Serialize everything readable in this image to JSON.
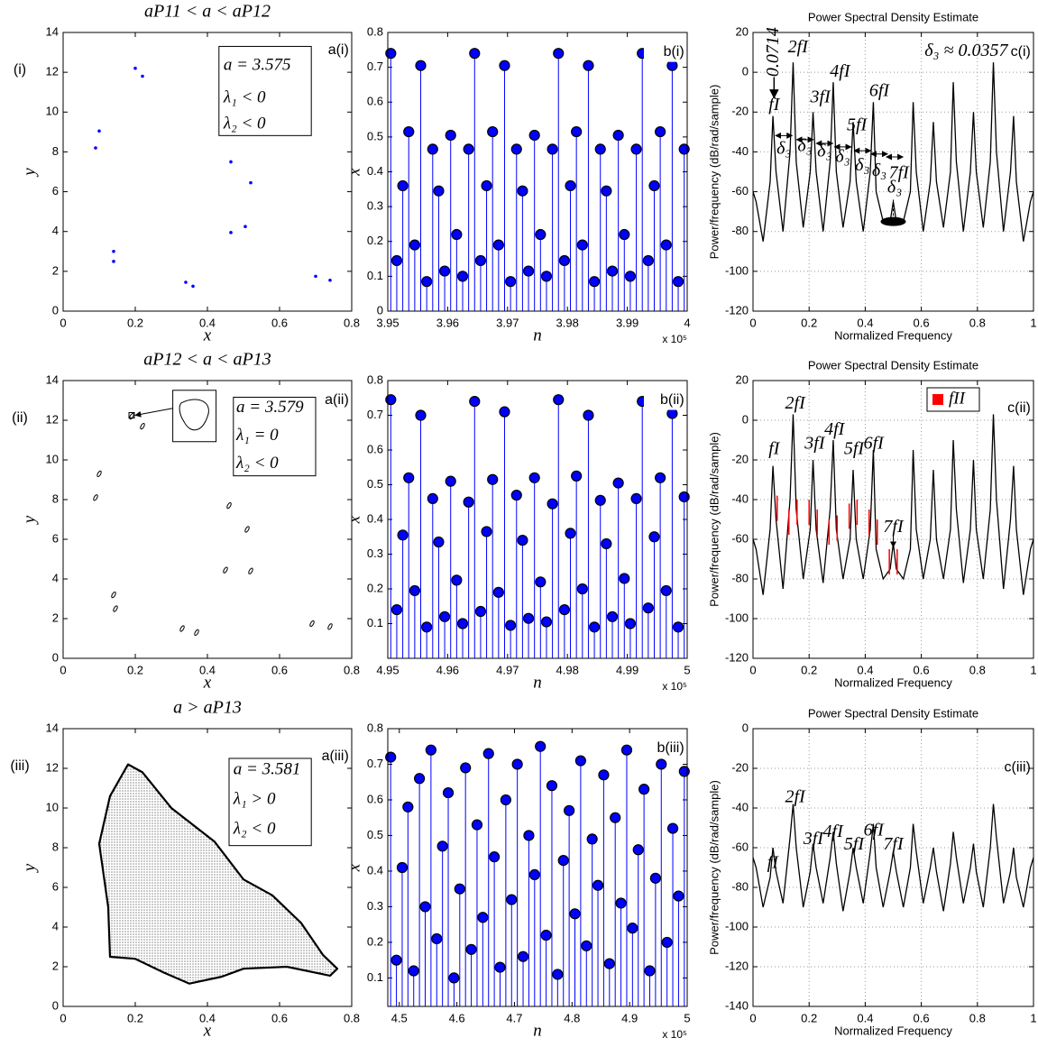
{
  "chart_data": [
    {
      "type": "scatter",
      "title": "aP11 < a < aP12",
      "row_label": "(i)",
      "xlabel": "x",
      "ylabel": "y",
      "marker": "dot",
      "color": "#0000ff",
      "x": [
        0.2,
        0.22,
        0.1,
        0.09,
        0.465,
        0.52,
        0.465,
        0.505,
        0.14,
        0.14,
        0.34,
        0.36,
        0.7,
        0.74
      ],
      "y": [
        12.2,
        11.8,
        9.05,
        8.2,
        7.5,
        6.45,
        3.95,
        4.25,
        3.0,
        2.5,
        1.45,
        1.25,
        1.75,
        1.55
      ],
      "xlim": [
        0,
        0.8
      ],
      "ylim": [
        0,
        14
      ],
      "xticks": [
        0,
        0.2,
        0.4,
        0.6,
        0.8
      ],
      "yticks": [
        0,
        2,
        4,
        6,
        8,
        10,
        12,
        14
      ],
      "annotations": [
        "a(i)",
        "a = 3.575",
        "λ₁ < 0",
        "λ₂ < 0"
      ]
    },
    {
      "type": "stem",
      "xlabel": "n",
      "ylabel": "x",
      "x_multiplier": "x 10⁵",
      "color": "#0000ff",
      "x": [
        3.9505,
        3.9515,
        3.9525,
        3.9535,
        3.9545,
        3.9555,
        3.9565,
        3.9575,
        3.9585,
        3.9595,
        3.9605,
        3.9615,
        3.9625,
        3.9635,
        3.9645,
        3.9655,
        3.9665,
        3.9675,
        3.9685,
        3.9695,
        3.9705,
        3.9715,
        3.9725,
        3.9735,
        3.9745,
        3.9755,
        3.9765,
        3.9775,
        3.9785,
        3.9795,
        3.9805,
        3.9815,
        3.9825,
        3.9835,
        3.9845,
        3.9855,
        3.9865,
        3.9875,
        3.9885,
        3.9895,
        3.9905,
        3.9915,
        3.9925,
        3.9935,
        3.9945,
        3.9955,
        3.9965,
        3.9975,
        3.9985,
        3.9995
      ],
      "values": [
        0.74,
        0.145,
        0.36,
        0.515,
        0.19,
        0.705,
        0.085,
        0.465,
        0.345,
        0.115,
        0.505,
        0.22,
        0.1,
        0.465,
        0.74,
        0.145,
        0.36,
        0.515,
        0.19,
        0.705,
        0.085,
        0.465,
        0.345,
        0.115,
        0.505,
        0.22,
        0.1,
        0.465,
        0.74,
        0.145,
        0.36,
        0.515,
        0.19,
        0.705,
        0.085,
        0.465,
        0.345,
        0.115,
        0.505,
        0.22,
        0.1,
        0.465,
        0.74,
        0.145,
        0.36,
        0.515,
        0.19,
        0.705,
        0.085,
        0.465
      ],
      "xlim": [
        3.95,
        4
      ],
      "ylim": [
        0,
        0.8
      ],
      "xticks": [
        3.95,
        3.96,
        3.97,
        3.98,
        3.99,
        4
      ],
      "yticks": [
        0,
        0.1,
        0.2,
        0.3,
        0.4,
        0.5,
        0.6,
        0.7,
        0.8
      ],
      "annotations": [
        "b(i)"
      ]
    },
    {
      "type": "line",
      "title": "Power Spectral Density Estimate",
      "xlabel": "Normalized Frequency",
      "ylabel": "Power/frequency (dB/rad/sample)",
      "grid": true,
      "x": [
        0,
        0.011,
        0.036,
        0.061,
        0.071,
        0.082,
        0.107,
        0.132,
        0.143,
        0.154,
        0.179,
        0.204,
        0.214,
        0.225,
        0.25,
        0.275,
        0.286,
        0.297,
        0.321,
        0.346,
        0.357,
        0.368,
        0.393,
        0.418,
        0.429,
        0.439,
        0.464,
        0.489,
        0.5,
        0.511,
        0.536,
        0.561,
        0.571,
        0.582,
        0.607,
        0.632,
        0.643,
        0.654,
        0.679,
        0.704,
        0.714,
        0.725,
        0.75,
        0.775,
        0.786,
        0.796,
        0.821,
        0.846,
        0.857,
        0.868,
        0.893,
        0.918,
        0.929,
        0.939,
        0.964,
        0.989,
        1
      ],
      "series": [
        {
          "color": "#000000",
          "values": [
            -60,
            -65,
            -85,
            -55,
            -22,
            -50,
            -80,
            -40,
            5,
            -45,
            -78,
            -50,
            -20,
            -50,
            -80,
            -45,
            -5,
            -50,
            -78,
            -55,
            -25,
            -55,
            -80,
            -50,
            -15,
            -60,
            -75,
            -75,
            -65,
            -75,
            -75,
            -60,
            -15,
            -50,
            -80,
            -55,
            -25,
            -55,
            -78,
            -50,
            -5,
            -45,
            -80,
            -50,
            -20,
            -50,
            -78,
            -45,
            5,
            -40,
            -80,
            -50,
            -22,
            -55,
            -85,
            -65,
            -60
          ]
        }
      ],
      "xlim": [
        0,
        1
      ],
      "ylim": [
        -120,
        20
      ],
      "xticks": [
        0,
        0.2,
        0.4,
        0.6,
        0.8,
        1
      ],
      "yticks": [
        -120,
        -100,
        -80,
        -60,
        -40,
        -20,
        0,
        20
      ],
      "annotations": [
        "0.0714",
        "fI",
        "2fI",
        "3fI",
        "4fI",
        "5fI",
        "6fI",
        "7fI",
        "δ₃",
        "δ₃",
        "δ₃",
        "δ₃",
        "δ₃",
        "δ₃",
        "δ₃",
        "δ₃ ≈ 0.0357",
        "c(i)"
      ]
    },
    {
      "type": "scatter",
      "title": "aP12 < a < aP13",
      "row_label": "(ii)",
      "xlabel": "x",
      "ylabel": "y",
      "marker": "loop",
      "color": "#000000",
      "x": [
        0.19,
        0.22,
        0.1,
        0.09,
        0.46,
        0.51,
        0.45,
        0.52,
        0.14,
        0.145,
        0.33,
        0.37,
        0.69,
        0.74
      ],
      "y": [
        12.2,
        11.7,
        9.3,
        8.1,
        7.7,
        6.5,
        4.45,
        4.4,
        3.2,
        2.5,
        1.5,
        1.3,
        1.75,
        1.6
      ],
      "xlim": [
        0,
        0.8
      ],
      "ylim": [
        0,
        14
      ],
      "xticks": [
        0,
        0.2,
        0.4,
        0.6,
        0.8
      ],
      "yticks": [
        0,
        2,
        4,
        6,
        8,
        10,
        12,
        14
      ],
      "annotations": [
        "a(ii)",
        "a = 3.579",
        "λ₁ = 0",
        "λ₂ < 0"
      ]
    },
    {
      "type": "stem",
      "xlabel": "n",
      "ylabel": "x",
      "x_multiplier": "x 10⁵",
      "color": "#0000ff",
      "x": [
        4.9505,
        4.9515,
        4.9525,
        4.9535,
        4.9545,
        4.9555,
        4.9565,
        4.9575,
        4.9585,
        4.9595,
        4.9605,
        4.9615,
        4.9625,
        4.9635,
        4.9645,
        4.9655,
        4.9665,
        4.9675,
        4.9685,
        4.9695,
        4.9705,
        4.9715,
        4.9725,
        4.9735,
        4.9745,
        4.9755,
        4.9765,
        4.9775,
        4.9785,
        4.9795,
        4.9805,
        4.9815,
        4.9825,
        4.9835,
        4.9845,
        4.9855,
        4.9865,
        4.9875,
        4.9885,
        4.9895,
        4.9905,
        4.9915,
        4.9925,
        4.9935,
        4.9945,
        4.9955,
        4.9965,
        4.9975,
        4.9985,
        4.9995
      ],
      "values": [
        0.745,
        0.14,
        0.355,
        0.52,
        0.195,
        0.7,
        0.09,
        0.46,
        0.335,
        0.12,
        0.51,
        0.225,
        0.1,
        0.45,
        0.74,
        0.135,
        0.365,
        0.515,
        0.19,
        0.71,
        0.095,
        0.47,
        0.34,
        0.115,
        0.52,
        0.22,
        0.105,
        0.445,
        0.745,
        0.14,
        0.36,
        0.525,
        0.2,
        0.7,
        0.09,
        0.455,
        0.33,
        0.12,
        0.505,
        0.23,
        0.1,
        0.46,
        0.74,
        0.145,
        0.35,
        0.52,
        0.195,
        0.705,
        0.09,
        0.465
      ],
      "xlim": [
        4.95,
        5
      ],
      "ylim": [
        0,
        0.8
      ],
      "xticks": [
        4.95,
        4.96,
        4.97,
        4.98,
        4.99,
        5
      ],
      "yticks": [
        0.1,
        0.2,
        0.3,
        0.4,
        0.5,
        0.6,
        0.7,
        0.8
      ],
      "annotations": [
        "b(ii)"
      ]
    },
    {
      "type": "line",
      "title": "Power Spectral Density Estimate",
      "xlabel": "Normalized Frequency",
      "ylabel": "Power/frequency (dB/rad/sample)",
      "grid": true,
      "legend": "upper right",
      "x": [
        0,
        0.011,
        0.036,
        0.061,
        0.071,
        0.082,
        0.107,
        0.132,
        0.143,
        0.154,
        0.179,
        0.204,
        0.214,
        0.225,
        0.25,
        0.275,
        0.286,
        0.297,
        0.321,
        0.346,
        0.357,
        0.368,
        0.393,
        0.418,
        0.429,
        0.439,
        0.464,
        0.489,
        0.5,
        0.511,
        0.536,
        0.561,
        0.571,
        0.582,
        0.607,
        0.632,
        0.643,
        0.654,
        0.679,
        0.704,
        0.714,
        0.725,
        0.75,
        0.775,
        0.786,
        0.796,
        0.821,
        0.846,
        0.857,
        0.868,
        0.893,
        0.918,
        0.929,
        0.939,
        0.964,
        0.989,
        1
      ],
      "series": [
        {
          "color": "#000000",
          "values": [
            -60,
            -65,
            -88,
            -55,
            -23,
            -50,
            -85,
            -40,
            3,
            -45,
            -80,
            -55,
            -20,
            -55,
            -82,
            -45,
            -10,
            -55,
            -80,
            -60,
            -25,
            -60,
            -80,
            -55,
            -15,
            -65,
            -80,
            -75,
            -62,
            -75,
            -80,
            -65,
            -15,
            -55,
            -80,
            -60,
            -25,
            -60,
            -80,
            -55,
            -10,
            -45,
            -82,
            -55,
            -20,
            -55,
            -80,
            -45,
            3,
            -40,
            -85,
            -50,
            -23,
            -55,
            -88,
            -65,
            -60
          ]
        },
        {
          "name": "fII",
          "color": "#ff0000",
          "mark": "stem",
          "x": [
            0.086,
            0.128,
            0.157,
            0.2,
            0.229,
            0.271,
            0.3,
            0.343,
            0.371,
            0.414,
            0.443,
            0.486,
            0.514
          ],
          "values": [
            -38,
            -45,
            -40,
            -40,
            -45,
            -50,
            -48,
            -42,
            -40,
            -45,
            -50,
            -65,
            -65
          ]
        }
      ],
      "xlim": [
        0,
        1
      ],
      "ylim": [
        -120,
        20
      ],
      "xticks": [
        0,
        0.2,
        0.4,
        0.6,
        0.8,
        1
      ],
      "yticks": [
        -120,
        -100,
        -80,
        -60,
        -40,
        -20,
        0,
        20
      ],
      "annotations": [
        "fI",
        "2fI",
        "3fI",
        "4fI",
        "5fI",
        "6fI",
        "7fI",
        "c(ii)"
      ]
    },
    {
      "type": "area",
      "title": "a > aP13",
      "row_label": "(iii)",
      "xlabel": "x",
      "ylabel": "y",
      "color": "#000000",
      "x": [
        0.13,
        0.125,
        0.1,
        0.13,
        0.18,
        0.22,
        0.3,
        0.42,
        0.5,
        0.58,
        0.66,
        0.72,
        0.76,
        0.74,
        0.62,
        0.5,
        0.44,
        0.35,
        0.28,
        0.2
      ],
      "y": [
        2.5,
        5,
        8.2,
        10.6,
        12.2,
        11.8,
        10,
        8.3,
        6.4,
        5.6,
        4.2,
        2.6,
        1.9,
        1.55,
        2,
        1.9,
        1.5,
        1.15,
        1.7,
        2.4
      ],
      "xlim": [
        0,
        0.8
      ],
      "ylim": [
        0,
        14
      ],
      "xticks": [
        0,
        0.2,
        0.4,
        0.6,
        0.8
      ],
      "yticks": [
        0,
        2,
        4,
        6,
        8,
        10,
        12,
        14
      ],
      "annotations": [
        "a(iii)",
        "a = 3.581",
        "λ₁ > 0",
        "λ₂ < 0"
      ]
    },
    {
      "type": "stem",
      "xlabel": "n",
      "ylabel": "x",
      "x_multiplier": "x 10⁵",
      "color": "#0000ff",
      "x": [
        4.485,
        4.495,
        4.505,
        4.515,
        4.525,
        4.535,
        4.545,
        4.555,
        4.565,
        4.575,
        4.585,
        4.595,
        4.605,
        4.615,
        4.625,
        4.635,
        4.645,
        4.655,
        4.665,
        4.675,
        4.685,
        4.695,
        4.705,
        4.715,
        4.725,
        4.735,
        4.745,
        4.755,
        4.765,
        4.775,
        4.785,
        4.795,
        4.805,
        4.815,
        4.825,
        4.835,
        4.845,
        4.855,
        4.865,
        4.875,
        4.885,
        4.895,
        4.905,
        4.915,
        4.925,
        4.935,
        4.945,
        4.955,
        4.965,
        4.975,
        4.985,
        4.995
      ],
      "values": [
        0.72,
        0.15,
        0.41,
        0.58,
        0.12,
        0.66,
        0.3,
        0.74,
        0.21,
        0.47,
        0.62,
        0.1,
        0.35,
        0.69,
        0.18,
        0.53,
        0.27,
        0.73,
        0.44,
        0.13,
        0.6,
        0.32,
        0.7,
        0.16,
        0.5,
        0.39,
        0.75,
        0.22,
        0.64,
        0.11,
        0.43,
        0.57,
        0.28,
        0.71,
        0.19,
        0.49,
        0.36,
        0.67,
        0.14,
        0.55,
        0.31,
        0.74,
        0.24,
        0.46,
        0.63,
        0.12,
        0.38,
        0.7,
        0.2,
        0.52,
        0.33,
        0.68
      ],
      "xlim": [
        4.48,
        5
      ],
      "ylim": [
        0.02,
        0.8
      ],
      "xticks": [
        4.5,
        4.6,
        4.7,
        4.8,
        4.9,
        5
      ],
      "yticks": [
        0.1,
        0.2,
        0.3,
        0.4,
        0.5,
        0.6,
        0.7,
        0.8
      ],
      "annotations": [
        "b(iii)"
      ]
    },
    {
      "type": "line",
      "title": "Power Spectral Density Estimate",
      "xlabel": "Normalized Frequency",
      "ylabel": "Power/frequency (dB/rad/sample)",
      "grid": true,
      "x": [
        0,
        0.011,
        0.036,
        0.061,
        0.071,
        0.082,
        0.107,
        0.132,
        0.143,
        0.154,
        0.179,
        0.204,
        0.214,
        0.225,
        0.25,
        0.275,
        0.286,
        0.297,
        0.321,
        0.346,
        0.357,
        0.368,
        0.393,
        0.418,
        0.429,
        0.439,
        0.464,
        0.489,
        0.5,
        0.511,
        0.536,
        0.561,
        0.571,
        0.582,
        0.607,
        0.632,
        0.643,
        0.654,
        0.679,
        0.704,
        0.714,
        0.725,
        0.75,
        0.775,
        0.786,
        0.796,
        0.821,
        0.846,
        0.857,
        0.868,
        0.893,
        0.918,
        0.929,
        0.939,
        0.964,
        0.989,
        1
      ],
      "series": [
        {
          "color": "#000000",
          "values": [
            -65,
            -70,
            -90,
            -75,
            -60,
            -72,
            -88,
            -55,
            -38,
            -60,
            -90,
            -72,
            -58,
            -70,
            -88,
            -65,
            -52,
            -68,
            -92,
            -72,
            -60,
            -70,
            -88,
            -62,
            -48,
            -70,
            -90,
            -72,
            -62,
            -72,
            -90,
            -70,
            -48,
            -62,
            -88,
            -70,
            -60,
            -72,
            -92,
            -68,
            -52,
            -65,
            -88,
            -70,
            -58,
            -72,
            -90,
            -60,
            -38,
            -55,
            -88,
            -72,
            -60,
            -75,
            -90,
            -70,
            -65
          ]
        }
      ],
      "xlim": [
        0,
        1
      ],
      "ylim": [
        -140,
        0
      ],
      "xticks": [
        0,
        0.2,
        0.4,
        0.6,
        0.8,
        1
      ],
      "yticks": [
        -140,
        -120,
        -100,
        -80,
        -60,
        -40,
        -20,
        0
      ],
      "annotations": [
        "fI",
        "2fI",
        "3fI",
        "4fI",
        "5fI",
        "6fI",
        "7fI",
        "c(iii)"
      ]
    }
  ]
}
